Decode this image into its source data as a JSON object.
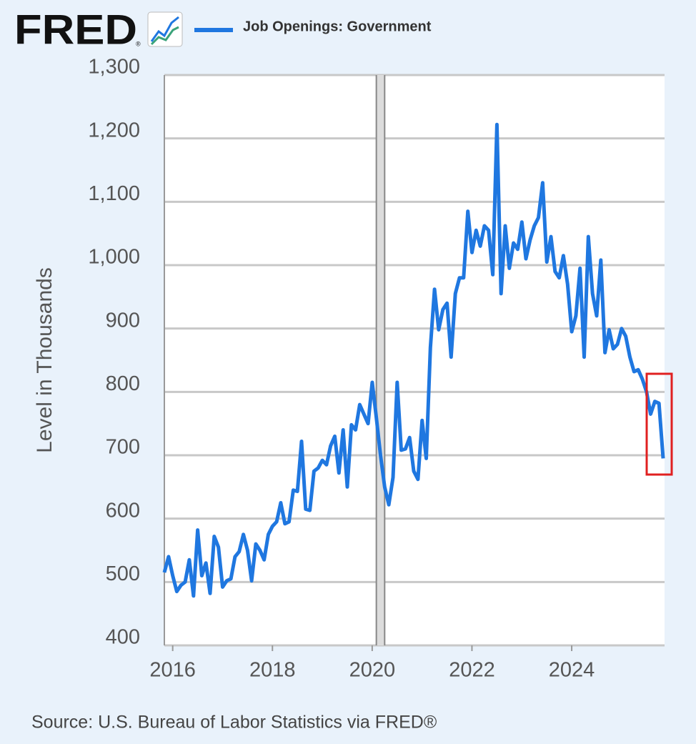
{
  "logo": "FRED",
  "logo_mark": "®",
  "chart_data": {
    "type": "line",
    "ylabel": "Level in Thousands",
    "source": "Source: U.S. Bureau of Labor Statistics via FRED®",
    "xlim": [
      2015.833,
      2025.833
    ],
    "xticks": [
      2016,
      2018,
      2020,
      2022,
      2024
    ],
    "ylim": [
      400,
      1300
    ],
    "yticks": [
      400,
      500,
      600,
      700,
      800,
      900,
      {
        "value": 1000,
        "label": "1,000"
      },
      {
        "value": 1100,
        "label": "1,100"
      },
      {
        "value": 1200,
        "label": "1,200"
      },
      {
        "value": 1300,
        "label": "1,300"
      }
    ],
    "grid": true,
    "recession": [
      2020.083,
      2020.25
    ],
    "x": [
      2015.833,
      2015.917,
      2016,
      2016.083,
      2016.167,
      2016.25,
      2016.333,
      2016.417,
      2016.5,
      2016.583,
      2016.667,
      2016.75,
      2016.833,
      2016.917,
      2017,
      2017.083,
      2017.167,
      2017.25,
      2017.333,
      2017.417,
      2017.5,
      2017.583,
      2017.667,
      2017.75,
      2017.833,
      2017.917,
      2018,
      2018.083,
      2018.167,
      2018.25,
      2018.333,
      2018.417,
      2018.5,
      2018.583,
      2018.667,
      2018.75,
      2018.833,
      2018.917,
      2019,
      2019.083,
      2019.167,
      2019.25,
      2019.333,
      2019.417,
      2019.5,
      2019.583,
      2019.667,
      2019.75,
      2019.833,
      2019.917,
      2020,
      2020.083,
      2020.167,
      2020.25,
      2020.333,
      2020.417,
      2020.5,
      2020.583,
      2020.667,
      2020.75,
      2020.833,
      2020.917,
      2021,
      2021.083,
      2021.167,
      2021.25,
      2021.333,
      2021.417,
      2021.5,
      2021.583,
      2021.667,
      2021.75,
      2021.833,
      2021.917,
      2022,
      2022.083,
      2022.167,
      2022.25,
      2022.333,
      2022.417,
      2022.5,
      2022.583,
      2022.667,
      2022.75,
      2022.833,
      2022.917,
      2023,
      2023.083,
      2023.167,
      2023.25,
      2023.333,
      2023.417,
      2023.5,
      2023.583,
      2023.667,
      2023.75,
      2023.833,
      2023.917,
      2024,
      2024.083,
      2024.167,
      2024.25,
      2024.333,
      2024.417,
      2024.5,
      2024.583,
      2024.667,
      2024.75,
      2024.833,
      2024.917,
      2025,
      2025.083,
      2025.167,
      2025.25,
      2025.333,
      2025.417,
      2025.5,
      2025.583,
      2025.667,
      2025.75,
      2025.833
    ],
    "series": [
      {
        "name": "Job Openings: Government",
        "color": "#1f77e0",
        "values": [
          515,
          540,
          510,
          485,
          495,
          500,
          535,
          478,
          582,
          510,
          530,
          482,
          572,
          555,
          492,
          502,
          505,
          540,
          548,
          575,
          550,
          502,
          560,
          550,
          535,
          575,
          588,
          595,
          625,
          592,
          595,
          645,
          643,
          722,
          615,
          613,
          675,
          680,
          692,
          685,
          715,
          730,
          672,
          740,
          650,
          748,
          740,
          780,
          765,
          750,
          815,
          760,
          700,
          650,
          622,
          665,
          815,
          708,
          710,
          728,
          675,
          662,
          755,
          695,
          870,
          962,
          898,
          930,
          940,
          855,
          955,
          980,
          980,
          1085,
          1020,
          1055,
          1030,
          1062,
          1055,
          985,
          1222,
          955,
          1062,
          995,
          1035,
          1025,
          1068,
          1010,
          1040,
          1062,
          1075,
          1130,
          1005,
          1045,
          990,
          980,
          1015,
          970,
          895,
          920,
          995,
          855,
          1045,
          955,
          920,
          1008,
          862,
          898,
          868,
          875,
          900,
          888,
          855,
          832,
          835,
          820,
          800,
          765,
          785,
          782,
          695
        ]
      }
    ]
  }
}
